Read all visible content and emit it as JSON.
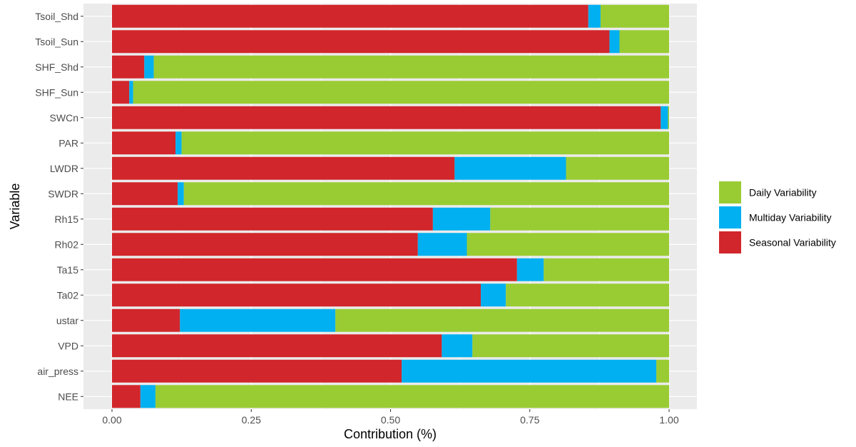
{
  "chart_data": {
    "type": "bar",
    "orientation": "horizontal",
    "stacked": true,
    "xlabel": "Contribution (%)",
    "ylabel": "Variable",
    "xlim": [
      0,
      1
    ],
    "x_ticks": [
      "0.00",
      "0.25",
      "0.50",
      "0.75",
      "1.00"
    ],
    "x_tick_values": [
      0,
      0.25,
      0.5,
      0.75,
      1.0
    ],
    "grid": true,
    "legend_position": "right",
    "categories": [
      "Tsoil_Shd",
      "Tsoil_Sun",
      "SHF_Shd",
      "SHF_Sun",
      "SWCn",
      "PAR",
      "LWDR",
      "SWDR",
      "Rh15",
      "Rh02",
      "Ta15",
      "Ta02",
      "ustar",
      "VPD",
      "air_press",
      "NEE"
    ],
    "series": [
      {
        "name": "Seasonal Variability",
        "color": "#d1262b",
        "values": [
          0.855,
          0.893,
          0.058,
          0.031,
          0.985,
          0.114,
          0.615,
          0.118,
          0.576,
          0.549,
          0.727,
          0.662,
          0.122,
          0.592,
          0.52,
          0.051
        ]
      },
      {
        "name": "Multiday Variability",
        "color": "#00b0f0",
        "values": [
          0.022,
          0.018,
          0.017,
          0.007,
          0.013,
          0.011,
          0.2,
          0.011,
          0.103,
          0.088,
          0.048,
          0.045,
          0.279,
          0.055,
          0.457,
          0.027
        ]
      },
      {
        "name": "Daily Variability",
        "color": "#99cc33",
        "values": [
          0.123,
          0.089,
          0.925,
          0.962,
          0.002,
          0.875,
          0.185,
          0.871,
          0.321,
          0.363,
          0.225,
          0.293,
          0.599,
          0.353,
          0.023,
          0.922
        ]
      }
    ],
    "legend_order": [
      "Daily Variability",
      "Multiday Variability",
      "Seasonal Variability"
    ]
  }
}
